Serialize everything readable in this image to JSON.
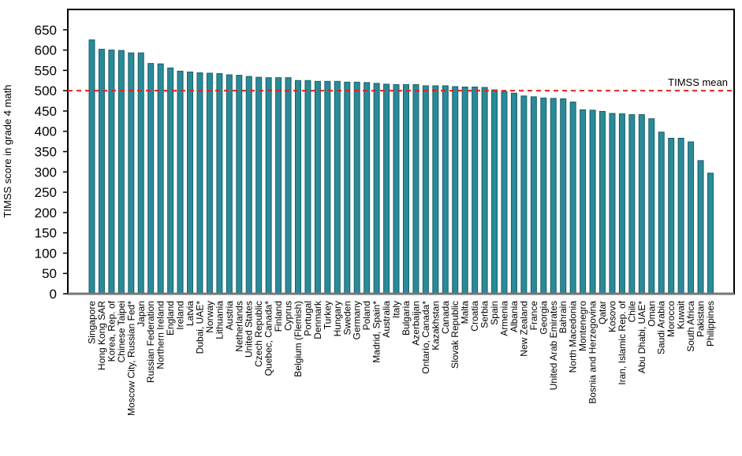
{
  "chart_data": {
    "type": "bar",
    "title": "",
    "xlabel": "",
    "ylabel": "TIMSS score in grade 4 math",
    "ylim": [
      0,
      700
    ],
    "yticks": [
      0,
      50,
      100,
      150,
      200,
      250,
      300,
      350,
      400,
      450,
      500,
      550,
      600,
      650
    ],
    "grid": false,
    "bar_color": "#2a8a98",
    "bar_edge_color": "#1a5f6a",
    "reference_line": {
      "label": "TIMSS mean",
      "value": 500,
      "color": "#e8201a",
      "style": "dashed"
    },
    "categories": [
      "Singapore",
      "Hong Kong SAR",
      "Korea, Rep. of",
      "Chinese Taipei",
      "Moscow City, Russian Fed*",
      "Japan",
      "Russian Federation",
      "Northern Ireland",
      "England",
      "Ireland",
      "Latvia",
      "Dubai, UAE*",
      "Norway",
      "Lithuania",
      "Austria",
      "Netherlands",
      "United States",
      "Czech Republic",
      "Quebec, Canada*",
      "Finland",
      "Cyprus",
      "Belgium (Flemish)",
      "Portugal",
      "Denmark",
      "Turkey",
      "Hungary",
      "Sweden",
      "Germany",
      "Poland",
      "Madrid, Spain*",
      "Australia",
      "Italy",
      "Bulgaria",
      "Azerbaijan",
      "Ontario, Canada*",
      "Kazakhstan",
      "Canada",
      "Slovak Republic",
      "Malta",
      "Croatia",
      "Serbia",
      "Spain",
      "Armenia",
      "Albania",
      "New Zealand",
      "France",
      "Georgia",
      "United Arab Emirates",
      "Bahrain",
      "North Macedonia",
      "Montenegro",
      "Bosnia and Herzegovina",
      "Qatar",
      "Kosovo",
      "Iran, Islamic Rep. of",
      "Chile",
      "Abu Dhabi, UAE*",
      "Oman",
      "Saudi Arabia",
      "Morocco",
      "Kuwait",
      "South Africa",
      "Pakistan",
      "Philippines"
    ],
    "values": [
      625,
      602,
      600,
      599,
      593,
      593,
      567,
      566,
      556,
      548,
      546,
      544,
      543,
      542,
      539,
      538,
      535,
      533,
      532,
      532,
      532,
      525,
      525,
      523,
      523,
      523,
      521,
      521,
      520,
      518,
      516,
      515,
      515,
      515,
      512,
      512,
      512,
      510,
      509,
      509,
      508,
      502,
      498,
      494,
      487,
      485,
      482,
      481,
      480,
      472,
      453,
      452,
      449,
      444,
      443,
      441,
      441,
      431,
      398,
      383,
      383,
      374,
      328,
      297
    ]
  }
}
